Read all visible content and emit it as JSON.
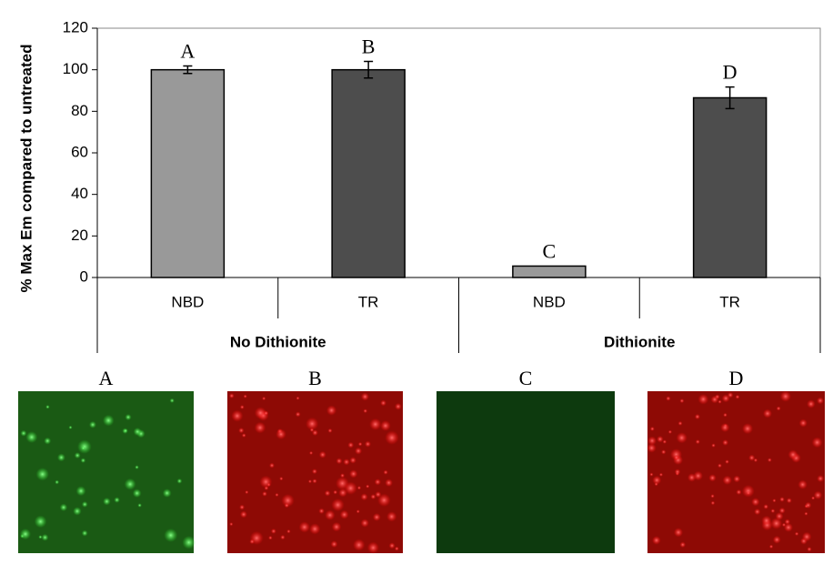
{
  "chart_data": {
    "type": "bar",
    "y_label": "% Max Em compared to untreated",
    "categories": [
      "NBD",
      "TR",
      "NBD",
      "TR"
    ],
    "groups": [
      "No Dithionite",
      "Dithionite"
    ],
    "values": [
      100,
      100,
      5.5,
      86.5
    ],
    "errors": [
      1.8,
      4,
      null,
      5.2
    ],
    "bar_labels": [
      "A",
      "B",
      "C",
      "D"
    ],
    "colors": [
      "#999999",
      "#4d4d4d",
      "#999999",
      "#4d4d4d"
    ],
    "ylim": [
      0,
      120
    ],
    "yticks": [
      0,
      20,
      40,
      60,
      80,
      100,
      120
    ]
  },
  "images": {
    "labels": [
      "A",
      "B",
      "C",
      "D"
    ]
  }
}
